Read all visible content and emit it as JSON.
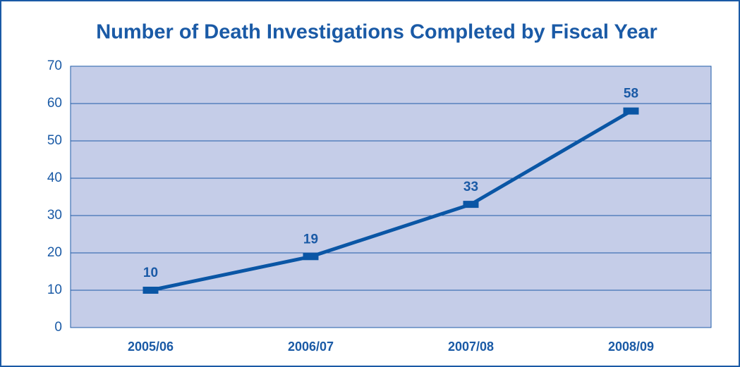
{
  "chart_data": {
    "type": "line",
    "title": "Number of Death Investigations Completed by Fiscal Year",
    "categories": [
      "2005/06",
      "2006/07",
      "2007/08",
      "2008/09"
    ],
    "values": [
      10,
      19,
      33,
      58
    ],
    "color": "#0a56a5",
    "ylim": [
      0,
      70
    ],
    "yticks": [
      0,
      10,
      20,
      30,
      40,
      50,
      60,
      70
    ],
    "grid": true
  }
}
